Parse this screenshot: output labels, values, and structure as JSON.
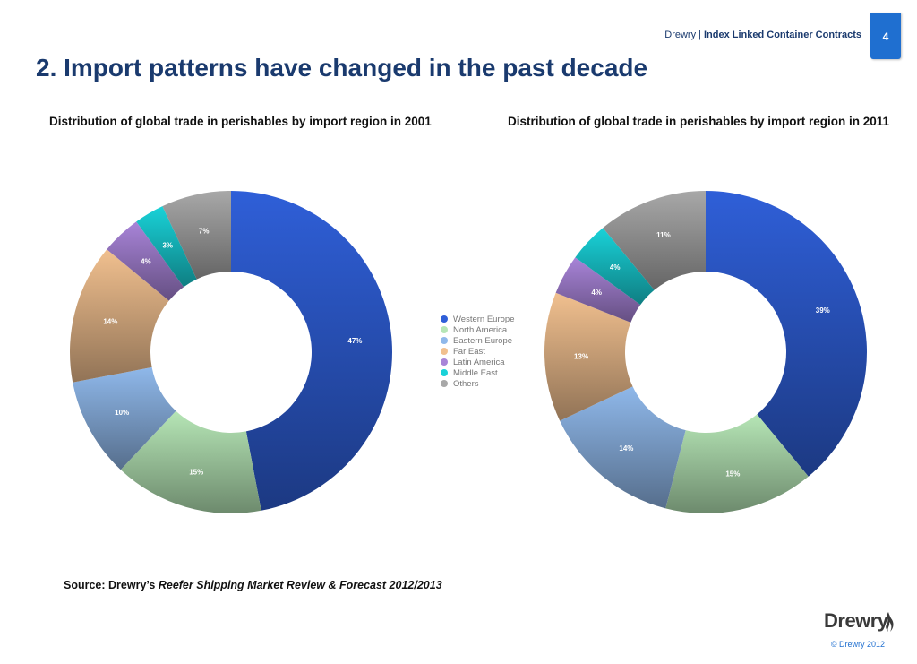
{
  "header": {
    "company": "Drewry",
    "separator": "|",
    "report_title": "Index Linked Container Contracts",
    "page_number": "4"
  },
  "page_title": "2. Import patterns have changed in the past decade",
  "chart_data": [
    {
      "type": "pie",
      "donut": true,
      "title": "Distribution of global trade in perishables by import region in 2001",
      "categories": [
        "Western Europe",
        "North America",
        "Eastern Europe",
        "Far East",
        "Latin America",
        "Middle East",
        "Others"
      ],
      "values": [
        47,
        15,
        10,
        14,
        4,
        3,
        7
      ],
      "labels": [
        "47%",
        "15%",
        "10%",
        "14%",
        "4%",
        "3%",
        "7%"
      ],
      "colors": [
        "#2f5fd8",
        "#b6e6b6",
        "#8fb8ea",
        "#f1c08f",
        "#a884d8",
        "#19d2d8",
        "#a8a8a8"
      ],
      "legend": "center"
    },
    {
      "type": "pie",
      "donut": true,
      "title": "Distribution of global trade in perishables by import region in 2011",
      "categories": [
        "Western Europe",
        "North America",
        "Eastern Europe",
        "Far East",
        "Latin America",
        "Middle East",
        "Others"
      ],
      "values": [
        39,
        15,
        14,
        13,
        4,
        4,
        11
      ],
      "labels": [
        "39%",
        "15%",
        "14%",
        "13%",
        "4%",
        "4%",
        "11%"
      ],
      "colors": [
        "#2f5fd8",
        "#b6e6b6",
        "#8fb8ea",
        "#f1c08f",
        "#a884d8",
        "#19d2d8",
        "#a8a8a8"
      ],
      "legend": "center"
    }
  ],
  "legend": {
    "items": [
      {
        "label": "Western Europe",
        "color": "#2f5fd8"
      },
      {
        "label": "North America",
        "color": "#b6e6b6"
      },
      {
        "label": "Eastern Europe",
        "color": "#8fb8ea"
      },
      {
        "label": "Far East",
        "color": "#f1c08f"
      },
      {
        "label": "Latin America",
        "color": "#a884d8"
      },
      {
        "label": "Middle East",
        "color": "#19d2d8"
      },
      {
        "label": "Others",
        "color": "#a8a8a8"
      }
    ]
  },
  "source": {
    "prefix": "Source: Drewry’s ",
    "publication": "Reefer Shipping Market Review & Forecast 2012/2013"
  },
  "footer": {
    "logo_text": "Drewry",
    "copyright": "© Drewry 2012"
  }
}
